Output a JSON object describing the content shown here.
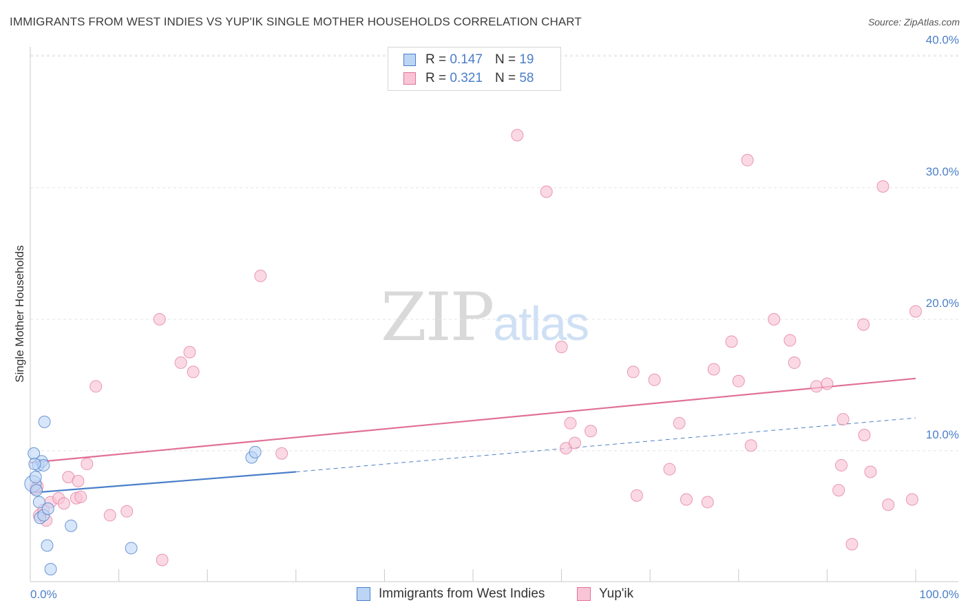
{
  "header": {
    "title": "IMMIGRANTS FROM WEST INDIES VS YUP'IK SINGLE MOTHER HOUSEHOLDS CORRELATION CHART",
    "source": "Source: ZipAtlas.com"
  },
  "watermark": {
    "zip": "ZIP",
    "atlas": "atlas"
  },
  "legend": {
    "rows": [
      {
        "r_label": "R =",
        "r_value": "0.147",
        "n_label": "N =",
        "n_value": "19"
      },
      {
        "r_label": "R =",
        "r_value": "0.321",
        "n_label": "N =",
        "n_value": "58"
      }
    ]
  },
  "chart_data": {
    "type": "scatter",
    "title": "IMMIGRANTS FROM WEST INDIES VS YUP'IK SINGLE MOTHER HOUSEHOLDS CORRELATION CHART",
    "xlabel": "",
    "ylabel": "Single Mother Households",
    "xlim": [
      0,
      100
    ],
    "ylim": [
      0,
      42
    ],
    "x_tick_labels": [
      "0.0%",
      "100.0%"
    ],
    "y_ticks": [
      10,
      20,
      30,
      40
    ],
    "y_tick_labels": [
      "10.0%",
      "20.0%",
      "30.0%",
      "40.0%"
    ],
    "grid": true,
    "legend_position": "top-center",
    "colors": {
      "blue": "#4a7ec9",
      "blue_fill": "#bcd5f5",
      "pink": "#e07096",
      "pink_fill": "#f9c5d6"
    },
    "series": [
      {
        "name": "Immigrants from West Indies",
        "color": "#4a7ec9",
        "r": 0.147,
        "n": 19,
        "trend": {
          "x0": 0,
          "y0": 6.8,
          "x1": 30,
          "y1": 8.4,
          "dash_to": 100,
          "dash_y": 12.5
        },
        "points": [
          [
            0.3,
            7.5
          ],
          [
            0.4,
            9.8
          ],
          [
            0.6,
            8.0
          ],
          [
            0.7,
            7.0
          ],
          [
            0.9,
            8.9
          ],
          [
            1.0,
            6.1
          ],
          [
            1.1,
            4.9
          ],
          [
            1.3,
            9.2
          ],
          [
            1.5,
            5.1
          ],
          [
            1.6,
            12.2
          ],
          [
            1.5,
            8.9
          ],
          [
            1.9,
            2.8
          ],
          [
            2.0,
            5.6
          ],
          [
            2.3,
            1.0
          ],
          [
            4.6,
            4.3
          ],
          [
            11.4,
            2.6
          ],
          [
            25.0,
            9.5
          ],
          [
            25.4,
            9.9
          ],
          [
            0.5,
            9.0
          ]
        ]
      },
      {
        "name": "Yup'ik",
        "color": "#e07096",
        "r": 0.321,
        "n": 58,
        "trend": {
          "x0": 0,
          "y0": 9.1,
          "x1": 100,
          "y1": 15.5
        },
        "points": [
          [
            0.6,
            7.1
          ],
          [
            1.0,
            5.1
          ],
          [
            1.5,
            5.5
          ],
          [
            1.8,
            4.7
          ],
          [
            2.3,
            6.1
          ],
          [
            3.2,
            6.4
          ],
          [
            3.8,
            6.0
          ],
          [
            4.3,
            8.0
          ],
          [
            5.2,
            6.4
          ],
          [
            5.4,
            7.7
          ],
          [
            5.7,
            6.5
          ],
          [
            6.4,
            9.0
          ],
          [
            7.4,
            14.9
          ],
          [
            9.0,
            5.1
          ],
          [
            10.9,
            5.4
          ],
          [
            14.6,
            20.0
          ],
          [
            14.9,
            1.7
          ],
          [
            17.0,
            16.7
          ],
          [
            18.0,
            17.5
          ],
          [
            18.4,
            16.0
          ],
          [
            26.0,
            23.3
          ],
          [
            28.4,
            9.8
          ],
          [
            55.0,
            34.0
          ],
          [
            58.3,
            29.7
          ],
          [
            60.0,
            17.9
          ],
          [
            60.5,
            10.2
          ],
          [
            61.0,
            12.1
          ],
          [
            61.5,
            10.6
          ],
          [
            63.3,
            11.5
          ],
          [
            68.1,
            16.0
          ],
          [
            68.5,
            6.6
          ],
          [
            70.5,
            15.4
          ],
          [
            72.2,
            8.6
          ],
          [
            73.3,
            12.1
          ],
          [
            74.1,
            6.3
          ],
          [
            76.5,
            6.1
          ],
          [
            77.2,
            16.2
          ],
          [
            79.2,
            18.3
          ],
          [
            80.0,
            15.3
          ],
          [
            81.0,
            32.1
          ],
          [
            81.4,
            10.4
          ],
          [
            84.0,
            20.0
          ],
          [
            85.8,
            18.4
          ],
          [
            86.3,
            16.7
          ],
          [
            88.8,
            14.9
          ],
          [
            90.0,
            15.1
          ],
          [
            91.3,
            7.0
          ],
          [
            91.6,
            8.9
          ],
          [
            91.8,
            12.4
          ],
          [
            92.8,
            2.9
          ],
          [
            94.1,
            19.6
          ],
          [
            94.2,
            11.2
          ],
          [
            94.9,
            8.4
          ],
          [
            96.3,
            30.1
          ],
          [
            96.9,
            5.9
          ],
          [
            99.6,
            6.3
          ],
          [
            100.0,
            20.6
          ],
          [
            0.8,
            7.3
          ]
        ]
      }
    ]
  },
  "bottom_legend": {
    "items": [
      {
        "label": "Immigrants from West Indies"
      },
      {
        "label": "Yup'ik"
      }
    ]
  }
}
